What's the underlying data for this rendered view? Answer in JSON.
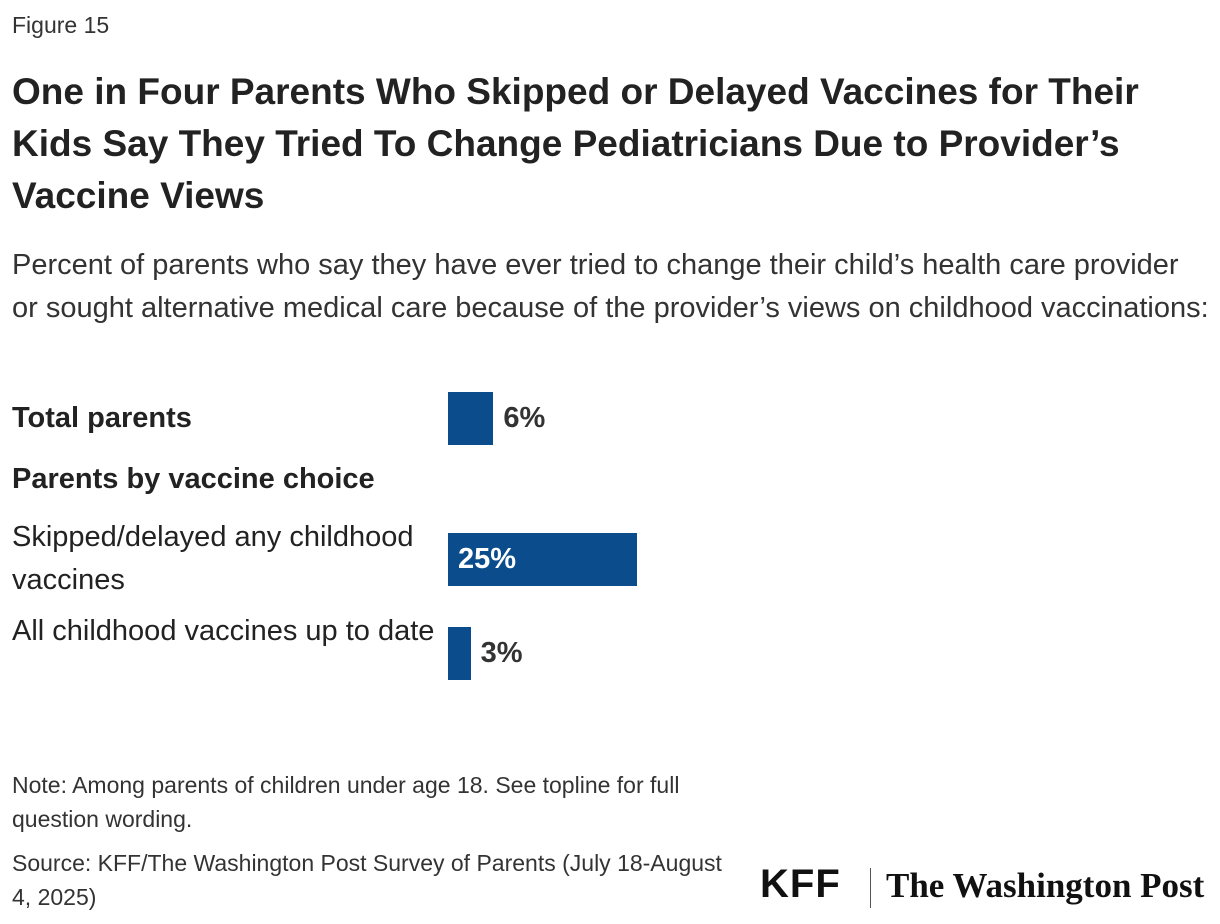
{
  "chart_data": {
    "type": "bar",
    "orientation": "horizontal",
    "figure_label": "Figure 15",
    "title": "One in Four Parents Who Skipped or Delayed Vaccines for Their Kids Say They Tried To Change Pediatricians Due to Provider’s Vaccine Views",
    "subtitle": "Percent of parents who say they have ever tried to change their child’s health care provider or sought alternative medical care because of the provider’s views on childhood vaccinations:",
    "categories": [
      "Total parents",
      "Parents by vaccine choice",
      "Skipped/delayed any childhood vaccines",
      "All childhood vaccines up to date"
    ],
    "category_bold": [
      true,
      true,
      false,
      false
    ],
    "values": [
      6,
      null,
      25,
      3
    ],
    "value_labels": [
      "6%",
      null,
      "25%",
      "3%"
    ],
    "color": "#0b4d8c",
    "note": "Note: Among parents of children under age 18. See topline for full question wording.",
    "source": "Source: KFF/The Washington Post Survey of Parents (July 18-August 4, 2025)",
    "logos": [
      "KFF",
      "The Washington Post"
    ]
  }
}
